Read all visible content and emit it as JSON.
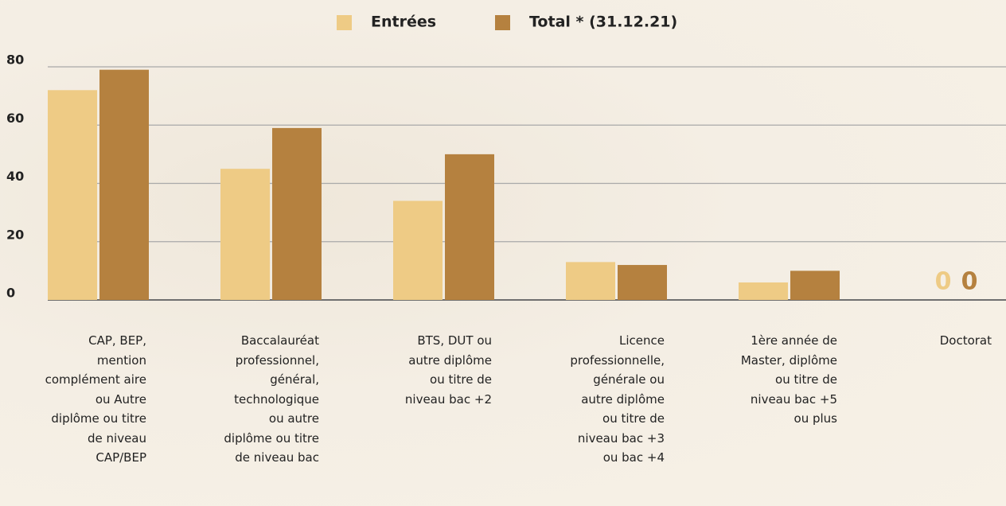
{
  "chart_data": {
    "type": "bar",
    "categories": [
      "CAP, BEP, mention complément aire ou Autre diplôme ou titre de niveau CAP/BEP",
      "Baccalauréat professionnel, général, technologique ou autre diplôme ou titre de niveau bac",
      "BTS, DUT ou autre diplôme ou titre de niveau bac +2",
      "Licence professionnelle, générale ou autre diplôme ou titre de niveau bac +3 ou bac +4",
      "1ère année de Master, diplôme ou titre de niveau bac +5 ou plus",
      "Doctorat"
    ],
    "series": [
      {
        "name": "Entrées",
        "color": "#eecb85",
        "values": [
          72,
          45,
          34,
          13,
          6,
          0
        ]
      },
      {
        "name": "Total * (31.12.21)",
        "color": "#b5813f",
        "values": [
          79,
          59,
          50,
          12,
          10,
          0
        ]
      }
    ],
    "ylim": [
      0,
      80
    ],
    "yticks": [
      0,
      20,
      40,
      60,
      80
    ],
    "grid": true,
    "legend": "top"
  }
}
